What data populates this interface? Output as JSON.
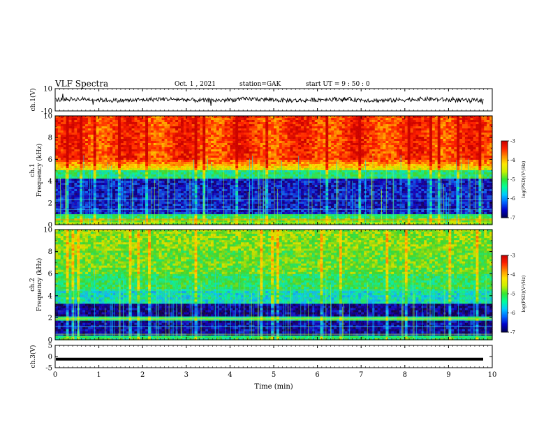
{
  "header": {
    "title": "VLF Spectra",
    "date": "Oct. 1 , 2021",
    "station": "station=GAK",
    "start": "start UT = 9 : 50 : 0"
  },
  "colors": {
    "scale": [
      "#000050",
      "#0000c8",
      "#0064ff",
      "#00c8ff",
      "#00ff9a",
      "#32e632",
      "#c8f000",
      "#ffe600",
      "#ff8c00",
      "#ff2000",
      "#c80000"
    ]
  },
  "chart_data": [
    {
      "type": "line",
      "panel": "ch1-waveform",
      "ylabel": "ch.1(V)",
      "ylim": [
        -10,
        10
      ],
      "yticks": [
        10,
        -10
      ],
      "xlim": [
        0,
        10
      ],
      "description_values": "noisy waveform around 0 V with amplitude about ±3 V"
    },
    {
      "type": "heatmap",
      "panel": "ch1-spectrogram",
      "ylabel_lines": [
        "ch.1",
        "Frequency (kHz)"
      ],
      "ylim": [
        0,
        10
      ],
      "yticks": [
        0,
        2,
        4,
        6,
        8,
        10
      ],
      "xlim": [
        0,
        10
      ],
      "colorbar": {
        "label": "log(PSD)(V²/Hz)",
        "range": [
          -7,
          -3
        ],
        "ticks": [
          -3,
          -4,
          -5,
          -6,
          -7
        ]
      }
    },
    {
      "type": "heatmap",
      "panel": "ch2-spectrogram",
      "ylabel_lines": [
        "ch.2",
        "Frequency (kHz)"
      ],
      "ylim": [
        0,
        10
      ],
      "yticks": [
        0,
        2,
        4,
        6,
        8,
        10
      ],
      "xlim": [
        0,
        10
      ],
      "colorbar": {
        "label": "log(PSD)(V²/Hz)",
        "range": [
          -7,
          -3
        ],
        "ticks": [
          -3,
          -4,
          -5,
          -6,
          -7
        ]
      }
    },
    {
      "type": "line",
      "panel": "ch3-waveform",
      "ylabel": "ch.3(V)",
      "ylim": [
        -5,
        5
      ],
      "yticks": [
        5,
        0,
        -5
      ],
      "xlim": [
        0,
        10
      ],
      "values_level": -1.2
    }
  ],
  "xaxis": {
    "label": "Time (min)",
    "ticks": [
      0,
      1,
      2,
      3,
      4,
      5,
      6,
      7,
      8,
      9,
      10
    ]
  }
}
